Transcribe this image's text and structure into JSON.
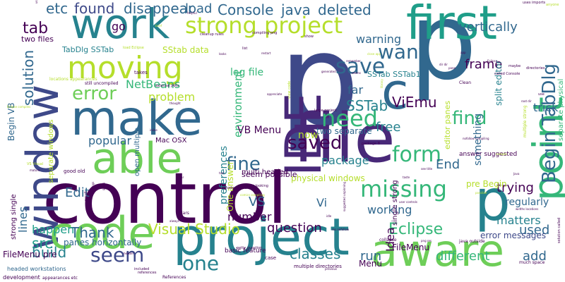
{
  "palette": {
    "dark_purple": "#440154",
    "purple": "#482878",
    "indigo": "#3e4989",
    "blue": "#31688e",
    "teal": "#26828e",
    "green": "#1f9e89",
    "mint": "#35b779",
    "lime": "#6ece58",
    "yellow_green": "#b5de2b",
    "yellow": "#fde725"
  },
  "words": [
    {
      "text": "control",
      "color": "#440154"
    },
    {
      "text": "p",
      "color": "#3e4989"
    },
    {
      "text": "p",
      "color": "#31688e"
    },
    {
      "text": "p",
      "color": "#26828e"
    },
    {
      "text": "work",
      "color": "#26828e"
    },
    {
      "text": "first",
      "color": "#1f9e89"
    },
    {
      "text": "file",
      "color": "#482878"
    },
    {
      "text": "project",
      "color": "#26828e"
    },
    {
      "text": "make",
      "color": "#31688e"
    },
    {
      "text": "window",
      "color": "#3e4989"
    },
    {
      "text": "code",
      "color": "#6ece58"
    },
    {
      "text": "aware",
      "color": "#6ece58"
    },
    {
      "text": "able",
      "color": "#6ece58"
    },
    {
      "text": "moving",
      "color": "#b5de2b"
    },
    {
      "text": "IDE",
      "color": "#482878"
    },
    {
      "text": "c",
      "color": "#31688e"
    },
    {
      "text": "point",
      "color": "#35b779"
    },
    {
      "text": "strong project",
      "color": "#b5de2b"
    },
    {
      "text": "error",
      "color": "#6ece58"
    },
    {
      "text": "save",
      "color": "#31688e"
    },
    {
      "text": "want",
      "color": "#31688e"
    },
    {
      "text": "need",
      "color": "#35b779"
    },
    {
      "text": "form",
      "color": "#35b779"
    },
    {
      "text": "missing",
      "color": "#35b779"
    },
    {
      "text": "Begin TabDlg",
      "color": "#31688e"
    },
    {
      "text": "fine",
      "color": "#31688e"
    },
    {
      "text": "saved",
      "color": "#440154"
    },
    {
      "text": "find",
      "color": "#35b779"
    },
    {
      "text": "one",
      "color": "#26828e"
    },
    {
      "text": "seem",
      "color": "#3e4989"
    },
    {
      "text": "tab",
      "color": "#440154"
    },
    {
      "text": "etc",
      "color": "#31688e"
    },
    {
      "text": "found",
      "color": "#3e4989"
    },
    {
      "text": "disappear",
      "color": "#31688e"
    },
    {
      "text": "load",
      "color": "#31688e"
    },
    {
      "text": "Console",
      "color": "#31688e"
    },
    {
      "text": "java",
      "color": "#31688e"
    },
    {
      "text": "deleted",
      "color": "#31688e"
    },
    {
      "text": "vertically",
      "color": "#31688e"
    },
    {
      "text": "solution",
      "color": "#31688e"
    },
    {
      "text": "go",
      "color": "#440154"
    },
    {
      "text": "warning",
      "color": "#31688e"
    },
    {
      "text": "frame",
      "color": "#440154"
    },
    {
      "text": "Eclipse",
      "color": "#35b779"
    },
    {
      "text": "Visual Studio",
      "color": "#b5de2b"
    },
    {
      "text": "ViEmu",
      "color": "#440154"
    },
    {
      "text": "SSTab",
      "color": "#26828e"
    },
    {
      "text": "free",
      "color": "#26828e"
    },
    {
      "text": "src",
      "color": "#1f9e89"
    },
    {
      "text": "build",
      "color": "#26828e"
    },
    {
      "text": "classes",
      "color": "#26828e"
    },
    {
      "text": "run",
      "color": "#31688e"
    },
    {
      "text": "Thank",
      "color": "#31688e"
    },
    {
      "text": "End",
      "color": "#31688e"
    },
    {
      "text": "used",
      "color": "#31688e"
    },
    {
      "text": "trying",
      "color": "#440154"
    },
    {
      "text": "add",
      "color": "#31688e"
    },
    {
      "text": "different",
      "color": "#35b779"
    },
    {
      "text": "question",
      "color": "#440154"
    },
    {
      "text": "environment",
      "color": "#35b779"
    },
    {
      "text": "package",
      "color": "#26828e"
    },
    {
      "text": "VS",
      "color": "#31688e"
    },
    {
      "text": "Edit",
      "color": "#31688e"
    },
    {
      "text": "happen",
      "color": "#1f9e89"
    },
    {
      "text": "popular",
      "color": "#31688e"
    },
    {
      "text": "number",
      "color": "#440154"
    },
    {
      "text": "Vi",
      "color": "#31688e"
    },
    {
      "text": "Idea",
      "color": "#440154"
    },
    {
      "text": "matters",
      "color": "#26828e"
    },
    {
      "text": "regularly",
      "color": "#31688e"
    },
    {
      "text": "working",
      "color": "#31688e"
    },
    {
      "text": "NetBeans",
      "color": "#35b779"
    },
    {
      "text": "problem",
      "color": "#b5de2b"
    },
    {
      "text": "VB Menu",
      "color": "#440154"
    },
    {
      "text": "log file",
      "color": "#35b779"
    },
    {
      "text": "far",
      "color": "#31688e"
    },
    {
      "text": "now",
      "color": "#b5de2b"
    },
    {
      "text": "two separate",
      "color": "#31688e"
    },
    {
      "text": "preferences",
      "color": "#26828e"
    },
    {
      "text": "something",
      "color": "#31688e"
    },
    {
      "text": "lines",
      "color": "#31688e"
    },
    {
      "text": "FileMenu pre",
      "color": "#440154"
    },
    {
      "text": "pre Begin",
      "color": "#b5de2b"
    },
    {
      "text": "trick",
      "color": "#31688e"
    },
    {
      "text": "TabDlg SSTab",
      "color": "#26828e"
    },
    {
      "text": "SStab data",
      "color": "#b5de2b"
    },
    {
      "text": "SSTab SSTab1",
      "color": "#26828e"
    },
    {
      "text": "One answer",
      "color": "#b5de2b"
    },
    {
      "text": "error messages",
      "color": "#3e4989"
    },
    {
      "text": "panes horizontally",
      "color": "#31688e"
    },
    {
      "text": "two files",
      "color": "#440154"
    },
    {
      "text": "FileMenu",
      "color": "#440154"
    },
    {
      "text": "Menu",
      "color": "#440154"
    },
    {
      "text": "physical windows",
      "color": "#b5de2b"
    },
    {
      "text": "split editor",
      "color": "#26828e"
    },
    {
      "text": "multi headed",
      "color": "#440154"
    },
    {
      "text": "Mac OSX",
      "color": "#440154"
    },
    {
      "text": "open multiple",
      "color": "#31688e"
    },
    {
      "text": "basic feature",
      "color": "#440154"
    },
    {
      "text": "seem possible",
      "color": "#440154"
    },
    {
      "text": "answer suggested",
      "color": "#440154"
    },
    {
      "text": "editor panes",
      "color": "#b5de2b"
    },
    {
      "text": "separate physical",
      "color": "#35b779"
    },
    {
      "text": "strong single",
      "color": "#440154"
    },
    {
      "text": "Begin VB",
      "color": "#31688e"
    },
    {
      "text": "headed workstations",
      "color": "#31688e"
    },
    {
      "text": "development",
      "color": "#440154"
    },
    {
      "text": "separate windows",
      "color": "#b5de2b"
    },
    {
      "text": "locations appearances",
      "color": "#b5de2b"
    },
    {
      "text": "takes",
      "color": "#440154"
    },
    {
      "text": "still uncompiled",
      "color": "#440154"
    },
    {
      "text": "multiple directories",
      "color": "#440154"
    },
    {
      "text": "case",
      "color": "#440154"
    },
    {
      "text": "Clean",
      "color": "#440154"
    },
    {
      "text": "collapse",
      "color": "#440154"
    },
    {
      "text": "cleanup rules",
      "color": "#440154"
    },
    {
      "text": "load Eclipse",
      "color": "#b5de2b"
    },
    {
      "text": "called Console",
      "color": "#440154"
    },
    {
      "text": "compiling png",
      "color": "#440154"
    },
    {
      "text": "large project",
      "color": "#440154"
    },
    {
      "text": "java outside",
      "color": "#440154"
    },
    {
      "text": "uses imports",
      "color": "#440154"
    },
    {
      "text": "anyone",
      "color": "#b5de2b"
    },
    {
      "text": "directories",
      "color": "#440154"
    },
    {
      "text": "maybe",
      "color": "#440154"
    },
    {
      "text": "good old",
      "color": "#440154"
    },
    {
      "text": "Eclipse compiles",
      "color": "#b5de2b"
    },
    {
      "text": "restart",
      "color": "#440154"
    },
    {
      "text": "remember",
      "color": "#440154"
    },
    {
      "text": "references",
      "color": "#440154"
    },
    {
      "text": "appearances etc",
      "color": "#440154"
    },
    {
      "text": "References",
      "color": "#440154"
    },
    {
      "text": "included",
      "color": "#440154"
    },
    {
      "text": "external JARs",
      "color": "#440154"
    },
    {
      "text": "today world",
      "color": "#440154"
    },
    {
      "text": "petty question",
      "color": "#440154"
    },
    {
      "text": "previous",
      "color": "#440154"
    },
    {
      "text": "much space",
      "color": "#440154"
    },
    {
      "text": "solution called",
      "color": "#440154"
    },
    {
      "text": "user controls",
      "color": "#440154"
    },
    {
      "text": "show",
      "color": "#440154"
    },
    {
      "text": "list",
      "color": "#440154"
    },
    {
      "text": "looks",
      "color": "#440154"
    },
    {
      "text": "jars",
      "color": "#440154"
    },
    {
      "text": "always",
      "color": "#440154"
    },
    {
      "text": "way",
      "color": "#440154"
    },
    {
      "text": "tool",
      "color": "#440154"
    },
    {
      "text": "mature",
      "color": "#440154"
    },
    {
      "text": "result",
      "color": "#440154"
    },
    {
      "text": "things",
      "color": "#440154"
    },
    {
      "text": "stays looking",
      "color": "#440154"
    },
    {
      "text": "view code",
      "color": "#b5de2b"
    },
    {
      "text": "library",
      "color": "#b5de2b"
    },
    {
      "text": "suggested unpinning",
      "color": "#440154"
    },
    {
      "text": "single strong",
      "color": "#440154"
    },
    {
      "text": "multiple strong",
      "color": "#b5de2b"
    },
    {
      "text": "widths locations",
      "color": "#440154"
    },
    {
      "text": "nofollow compiling",
      "color": "#440154"
    },
    {
      "text": "see title",
      "color": "#440154"
    },
    {
      "text": "appreciate",
      "color": "#440154"
    },
    {
      "text": "generated",
      "color": "#440154"
    },
    {
      "text": "package B",
      "color": "#440154"
    },
    {
      "text": "comics compiling",
      "color": "#b5de2b"
    },
    {
      "text": "VS Visual",
      "color": "#b5de2b"
    },
    {
      "text": "compile",
      "color": "#b5de2b"
    },
    {
      "text": "possible",
      "color": "#b5de2b"
    },
    {
      "text": "using",
      "color": "#440154"
    },
    {
      "text": "use",
      "color": "#440154"
    },
    {
      "text": "helpful",
      "color": "#440154"
    },
    {
      "text": "close app",
      "color": "#b5de2b"
    },
    {
      "text": "root dir",
      "color": "#440154"
    },
    {
      "text": "Java",
      "color": "#440154"
    },
    {
      "text": "taste",
      "color": "#440154"
    },
    {
      "text": "thought",
      "color": "#440154"
    },
    {
      "text": "jar",
      "color": "#440154"
    },
    {
      "text": "png res",
      "color": "#440154"
    },
    {
      "text": "idle",
      "color": "#440154"
    },
    {
      "text": "inline",
      "color": "#440154"
    },
    {
      "text": "brief",
      "color": "#b5de2b"
    },
    {
      "text": "seems",
      "color": "#440154"
    },
    {
      "text": "going",
      "color": "#440154"
    },
    {
      "text": "res nofollow",
      "color": "#440154"
    },
    {
      "text": "header",
      "color": "#440154"
    },
    {
      "text": "pane",
      "color": "#440154"
    },
    {
      "text": "dir dir",
      "color": "#440154"
    },
    {
      "text": "Eclipse",
      "color": "#440154"
    },
    {
      "text": "app",
      "color": "#440154"
    }
  ]
}
